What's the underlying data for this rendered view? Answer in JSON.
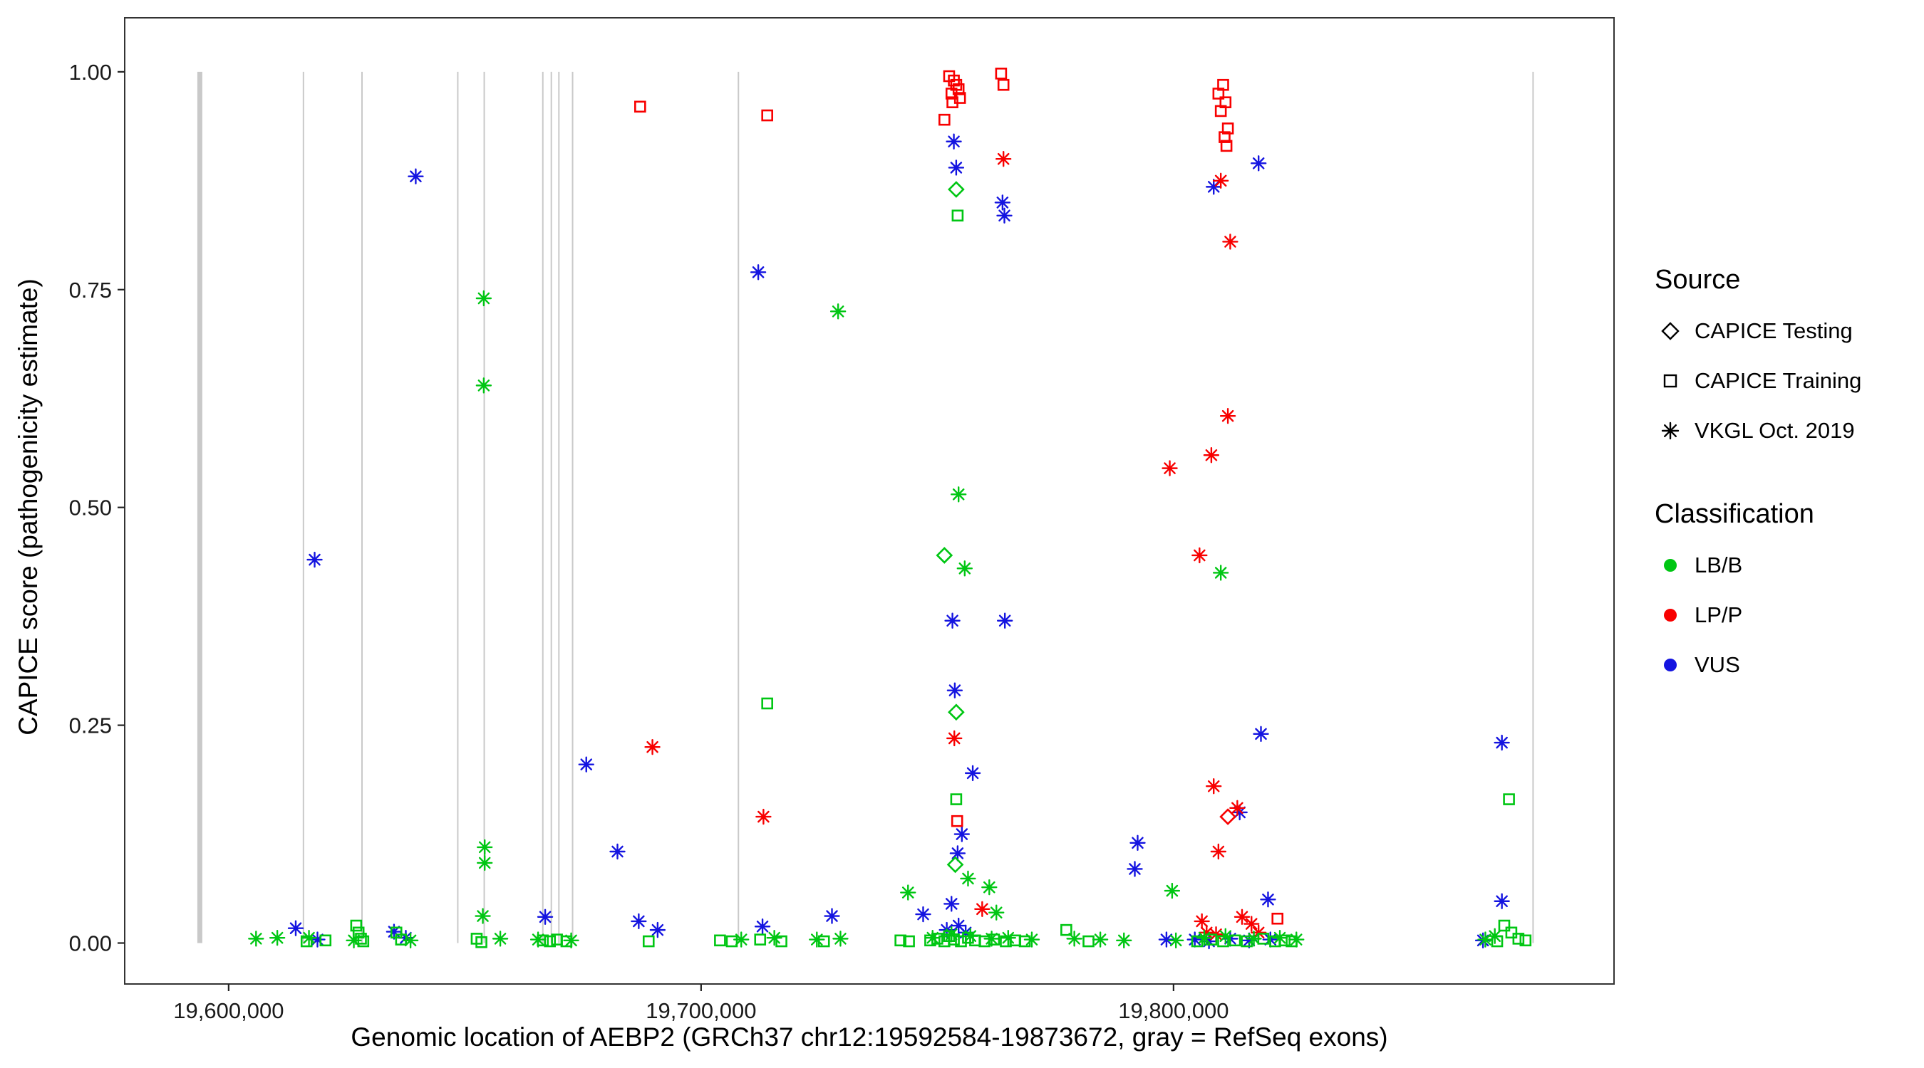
{
  "colors": {
    "lbb": "#00C613",
    "lpp": "#F80000",
    "vus": "#1414E0",
    "exon": "#C9C9C9",
    "axis": "#333333",
    "tick_text": "#1A1A1A"
  },
  "legend": {
    "source": {
      "title": "Source",
      "items": [
        {
          "label": "CAPICE Testing",
          "marker": "diamond-open"
        },
        {
          "label": "CAPICE Training",
          "marker": "square-open"
        },
        {
          "label": "VKGL Oct. 2019",
          "marker": "asterisk"
        }
      ]
    },
    "classification": {
      "title": "Classification",
      "items": [
        {
          "label": "LB/B",
          "color_key": "lbb"
        },
        {
          "label": "LP/P",
          "color_key": "lpp"
        },
        {
          "label": "VUS",
          "color_key": "vus"
        }
      ]
    }
  },
  "chart_data": {
    "type": "scatter",
    "title": "",
    "xlabel": "Genomic location of AEBP2 (GRCh37 chr12:19592584-19873672, gray = RefSeq exons)",
    "ylabel": "CAPICE score (pathogenicity estimate)",
    "xlim": [
      19578000,
      19893233
    ],
    "ylim": [
      -0.047,
      1.062
    ],
    "grid": false,
    "legend_position": "right",
    "x_ticks": [
      {
        "value": 19600000,
        "label": "19,600,000"
      },
      {
        "value": 19700000,
        "label": "19,700,000"
      },
      {
        "value": 19800000,
        "label": "19,800,000"
      }
    ],
    "y_ticks": [
      {
        "value": 1.0,
        "label": "1.00"
      },
      {
        "value": 0.75,
        "label": "0.75"
      },
      {
        "value": 0.5,
        "label": "0.50"
      },
      {
        "value": 0.25,
        "label": "0.25"
      },
      {
        "value": 0.0,
        "label": "0.00"
      }
    ],
    "source_codes": {
      "T": "CAPICE Testing",
      "R": "CAPICE Training",
      "V": "VKGL Oct. 2019"
    },
    "class_codes": {
      "B": "LB/B",
      "P": "LP/P",
      "U": "VUS"
    },
    "exons": [
      {
        "pos": 19593900,
        "wide": true
      },
      {
        "pos": 19615830,
        "wide": false
      },
      {
        "pos": 19628230,
        "wide": false
      },
      {
        "pos": 19648500,
        "wide": false
      },
      {
        "pos": 19654100,
        "wide": false
      },
      {
        "pos": 19666500,
        "wide": false
      },
      {
        "pos": 19668300,
        "wide": false
      },
      {
        "pos": 19669900,
        "wide": false
      },
      {
        "pos": 19672800,
        "wide": false
      },
      {
        "pos": 19707900,
        "wide": false
      },
      {
        "pos": 19876100,
        "wide": false
      }
    ],
    "points": [
      [
        19639600,
        0.88,
        "V",
        "U"
      ],
      [
        19618200,
        0.44,
        "V",
        "U"
      ],
      [
        19712100,
        0.77,
        "V",
        "U"
      ],
      [
        19675700,
        0.205,
        "V",
        "U"
      ],
      [
        19682300,
        0.105,
        "V",
        "U"
      ],
      [
        19686800,
        0.025,
        "V",
        "U"
      ],
      [
        19690800,
        0.015,
        "V",
        "U"
      ],
      [
        19614200,
        0.017,
        "V",
        "U"
      ],
      [
        19618800,
        0.004,
        "V",
        "U"
      ],
      [
        19635000,
        0.013,
        "V",
        "U"
      ],
      [
        19637500,
        0.006,
        "V",
        "U"
      ],
      [
        19667000,
        0.03,
        "V",
        "U"
      ],
      [
        19713000,
        0.019,
        "V",
        "U"
      ],
      [
        19727700,
        0.031,
        "V",
        "U"
      ],
      [
        19747000,
        0.033,
        "V",
        "U"
      ],
      [
        19753500,
        0.92,
        "V",
        "U"
      ],
      [
        19754000,
        0.89,
        "V",
        "U"
      ],
      [
        19763800,
        0.85,
        "V",
        "U"
      ],
      [
        19764200,
        0.835,
        "V",
        "U"
      ],
      [
        19753200,
        0.37,
        "V",
        "U"
      ],
      [
        19764300,
        0.37,
        "V",
        "U"
      ],
      [
        19753700,
        0.29,
        "V",
        "U"
      ],
      [
        19757500,
        0.195,
        "V",
        "U"
      ],
      [
        19755200,
        0.125,
        "V",
        "U"
      ],
      [
        19754300,
        0.103,
        "V",
        "U"
      ],
      [
        19753000,
        0.045,
        "V",
        "U"
      ],
      [
        19752000,
        0.015,
        "V",
        "U"
      ],
      [
        19754500,
        0.02,
        "V",
        "U"
      ],
      [
        19756000,
        0.012,
        "V",
        "U"
      ],
      [
        19792400,
        0.115,
        "V",
        "U"
      ],
      [
        19791800,
        0.085,
        "V",
        "U"
      ],
      [
        19798500,
        0.004,
        "V",
        "U"
      ],
      [
        19808500,
        0.868,
        "V",
        "U"
      ],
      [
        19818000,
        0.895,
        "V",
        "U"
      ],
      [
        19814000,
        0.15,
        "V",
        "U"
      ],
      [
        19818500,
        0.24,
        "V",
        "U"
      ],
      [
        19820000,
        0.05,
        "V",
        "U"
      ],
      [
        19804500,
        0.004,
        "V",
        "U"
      ],
      [
        19807500,
        0.002,
        "V",
        "U"
      ],
      [
        19812000,
        0.005,
        "V",
        "U"
      ],
      [
        19816000,
        0.003,
        "V",
        "U"
      ],
      [
        19820500,
        0.004,
        "V",
        "U"
      ],
      [
        19869500,
        0.23,
        "V",
        "U"
      ],
      [
        19869500,
        0.048,
        "V",
        "U"
      ],
      [
        19865500,
        0.003,
        "V",
        "U"
      ],
      [
        19689700,
        0.225,
        "V",
        "P"
      ],
      [
        19713200,
        0.145,
        "V",
        "P"
      ],
      [
        19764000,
        0.9,
        "V",
        "P"
      ],
      [
        19753600,
        0.235,
        "V",
        "P"
      ],
      [
        19759500,
        0.039,
        "V",
        "P"
      ],
      [
        19799200,
        0.545,
        "V",
        "P"
      ],
      [
        19810000,
        0.875,
        "V",
        "P"
      ],
      [
        19812000,
        0.805,
        "V",
        "P"
      ],
      [
        19811500,
        0.605,
        "V",
        "P"
      ],
      [
        19808000,
        0.56,
        "V",
        "P"
      ],
      [
        19805500,
        0.445,
        "V",
        "P"
      ],
      [
        19808500,
        0.18,
        "V",
        "P"
      ],
      [
        19813500,
        0.155,
        "V",
        "P"
      ],
      [
        19809500,
        0.105,
        "V",
        "P"
      ],
      [
        19806000,
        0.025,
        "V",
        "P"
      ],
      [
        19809000,
        0.01,
        "V",
        "P"
      ],
      [
        19814500,
        0.03,
        "V",
        "P"
      ],
      [
        19816500,
        0.022,
        "V",
        "P"
      ],
      [
        19818000,
        0.012,
        "V",
        "P"
      ],
      [
        19807000,
        0.012,
        "V",
        "P"
      ],
      [
        19654000,
        0.74,
        "V",
        "B"
      ],
      [
        19654000,
        0.64,
        "V",
        "B"
      ],
      [
        19654200,
        0.11,
        "V",
        "B"
      ],
      [
        19654200,
        0.092,
        "V",
        "B"
      ],
      [
        19653800,
        0.031,
        "V",
        "B"
      ],
      [
        19657500,
        0.005,
        "V",
        "B"
      ],
      [
        19729000,
        0.725,
        "V",
        "B"
      ],
      [
        19754500,
        0.515,
        "V",
        "B"
      ],
      [
        19755800,
        0.43,
        "V",
        "B"
      ],
      [
        19810000,
        0.425,
        "V",
        "B"
      ],
      [
        19743800,
        0.058,
        "V",
        "B"
      ],
      [
        19756500,
        0.074,
        "V",
        "B"
      ],
      [
        19761000,
        0.064,
        "V",
        "B"
      ],
      [
        19762500,
        0.035,
        "V",
        "B"
      ],
      [
        19799700,
        0.06,
        "V",
        "B"
      ],
      [
        19605800,
        0.005,
        "V",
        "B"
      ],
      [
        19610300,
        0.006,
        "V",
        "B"
      ],
      [
        19617000,
        0.006,
        "V",
        "B"
      ],
      [
        19626500,
        0.003,
        "V",
        "B"
      ],
      [
        19638500,
        0.003,
        "V",
        "B"
      ],
      [
        19665500,
        0.004,
        "V",
        "B"
      ],
      [
        19672500,
        0.003,
        "V",
        "B"
      ],
      [
        19708500,
        0.004,
        "V",
        "B"
      ],
      [
        19715500,
        0.006,
        "V",
        "B"
      ],
      [
        19724500,
        0.004,
        "V",
        "B"
      ],
      [
        19729500,
        0.005,
        "V",
        "B"
      ],
      [
        19749000,
        0.006,
        "V",
        "B"
      ],
      [
        19753000,
        0.01,
        "V",
        "B"
      ],
      [
        19757000,
        0.008,
        "V",
        "B"
      ],
      [
        19761500,
        0.005,
        "V",
        "B"
      ],
      [
        19765000,
        0.006,
        "V",
        "B"
      ],
      [
        19770000,
        0.004,
        "V",
        "B"
      ],
      [
        19779000,
        0.005,
        "V",
        "B"
      ],
      [
        19784500,
        0.004,
        "V",
        "B"
      ],
      [
        19789500,
        0.003,
        "V",
        "B"
      ],
      [
        19800500,
        0.003,
        "V",
        "B"
      ],
      [
        19806500,
        0.006,
        "V",
        "B"
      ],
      [
        19811000,
        0.008,
        "V",
        "B"
      ],
      [
        19817000,
        0.005,
        "V",
        "B"
      ],
      [
        19822500,
        0.006,
        "V",
        "B"
      ],
      [
        19826000,
        0.004,
        "V",
        "B"
      ],
      [
        19866000,
        0.004,
        "V",
        "B"
      ],
      [
        19868000,
        0.008,
        "V",
        "B"
      ],
      [
        19687100,
        0.96,
        "R",
        "P"
      ],
      [
        19714000,
        0.95,
        "R",
        "P"
      ],
      [
        19752500,
        0.995,
        "R",
        "P"
      ],
      [
        19753500,
        0.99,
        "R",
        "P"
      ],
      [
        19754000,
        0.985,
        "R",
        "P"
      ],
      [
        19754500,
        0.98,
        "R",
        "P"
      ],
      [
        19753000,
        0.975,
        "R",
        "P"
      ],
      [
        19754800,
        0.97,
        "R",
        "P"
      ],
      [
        19753200,
        0.965,
        "R",
        "P"
      ],
      [
        19751500,
        0.945,
        "R",
        "P"
      ],
      [
        19763500,
        0.998,
        "R",
        "P"
      ],
      [
        19764000,
        0.985,
        "R",
        "P"
      ],
      [
        19809500,
        0.975,
        "R",
        "P"
      ],
      [
        19810500,
        0.985,
        "R",
        "P"
      ],
      [
        19811000,
        0.965,
        "R",
        "P"
      ],
      [
        19810000,
        0.955,
        "R",
        "P"
      ],
      [
        19811500,
        0.935,
        "R",
        "P"
      ],
      [
        19810800,
        0.925,
        "R",
        "P"
      ],
      [
        19811200,
        0.915,
        "R",
        "P"
      ],
      [
        19754200,
        0.14,
        "R",
        "P"
      ],
      [
        19822000,
        0.028,
        "R",
        "P"
      ],
      [
        19754300,
        0.835,
        "R",
        "B"
      ],
      [
        19714000,
        0.275,
        "R",
        "B"
      ],
      [
        19754000,
        0.165,
        "R",
        "B"
      ],
      [
        19871000,
        0.165,
        "R",
        "B"
      ],
      [
        19616500,
        0.002,
        "R",
        "B"
      ],
      [
        19620500,
        0.003,
        "R",
        "B"
      ],
      [
        19627000,
        0.02,
        "R",
        "B"
      ],
      [
        19627500,
        0.012,
        "R",
        "B"
      ],
      [
        19628000,
        0.005,
        "R",
        "B"
      ],
      [
        19628500,
        0.002,
        "R",
        "B"
      ],
      [
        19635500,
        0.012,
        "R",
        "B"
      ],
      [
        19636500,
        0.004,
        "R",
        "B"
      ],
      [
        19652500,
        0.005,
        "R",
        "B"
      ],
      [
        19653500,
        0.001,
        "R",
        "B"
      ],
      [
        19666500,
        0.003,
        "R",
        "B"
      ],
      [
        19668000,
        0.002,
        "R",
        "B"
      ],
      [
        19669500,
        0.004,
        "R",
        "B"
      ],
      [
        19671500,
        0.002,
        "R",
        "B"
      ],
      [
        19688900,
        0.002,
        "R",
        "B"
      ],
      [
        19704000,
        0.003,
        "R",
        "B"
      ],
      [
        19706500,
        0.002,
        "R",
        "B"
      ],
      [
        19712500,
        0.004,
        "R",
        "B"
      ],
      [
        19717000,
        0.002,
        "R",
        "B"
      ],
      [
        19726000,
        0.002,
        "R",
        "B"
      ],
      [
        19742200,
        0.003,
        "R",
        "B"
      ],
      [
        19744000,
        0.002,
        "R",
        "B"
      ],
      [
        19748500,
        0.003,
        "R",
        "B"
      ],
      [
        19750000,
        0.005,
        "R",
        "B"
      ],
      [
        19751500,
        0.002,
        "R",
        "B"
      ],
      [
        19752500,
        0.008,
        "R",
        "B"
      ],
      [
        19753500,
        0.004,
        "R",
        "B"
      ],
      [
        19755000,
        0.002,
        "R",
        "B"
      ],
      [
        19756500,
        0.006,
        "R",
        "B"
      ],
      [
        19758000,
        0.003,
        "R",
        "B"
      ],
      [
        19760000,
        0.002,
        "R",
        "B"
      ],
      [
        19762000,
        0.004,
        "R",
        "B"
      ],
      [
        19764500,
        0.002,
        "R",
        "B"
      ],
      [
        19766500,
        0.003,
        "R",
        "B"
      ],
      [
        19768500,
        0.002,
        "R",
        "B"
      ],
      [
        19777300,
        0.015,
        "R",
        "B"
      ],
      [
        19782000,
        0.002,
        "R",
        "B"
      ],
      [
        19805000,
        0.002,
        "R",
        "B"
      ],
      [
        19808000,
        0.004,
        "R",
        "B"
      ],
      [
        19810500,
        0.002,
        "R",
        "B"
      ],
      [
        19813000,
        0.003,
        "R",
        "B"
      ],
      [
        19815500,
        0.002,
        "R",
        "B"
      ],
      [
        19819000,
        0.005,
        "R",
        "B"
      ],
      [
        19821500,
        0.002,
        "R",
        "B"
      ],
      [
        19823500,
        0.003,
        "R",
        "B"
      ],
      [
        19825000,
        0.002,
        "R",
        "B"
      ],
      [
        19868500,
        0.002,
        "R",
        "B"
      ],
      [
        19870000,
        0.02,
        "R",
        "B"
      ],
      [
        19871500,
        0.012,
        "R",
        "B"
      ],
      [
        19873000,
        0.005,
        "R",
        "B"
      ],
      [
        19874500,
        0.003,
        "R",
        "B"
      ],
      [
        19754000,
        0.865,
        "T",
        "B"
      ],
      [
        19751500,
        0.445,
        "T",
        "B"
      ],
      [
        19754000,
        0.265,
        "T",
        "B"
      ],
      [
        19753800,
        0.09,
        "T",
        "B"
      ],
      [
        19811500,
        0.145,
        "T",
        "P"
      ]
    ]
  }
}
